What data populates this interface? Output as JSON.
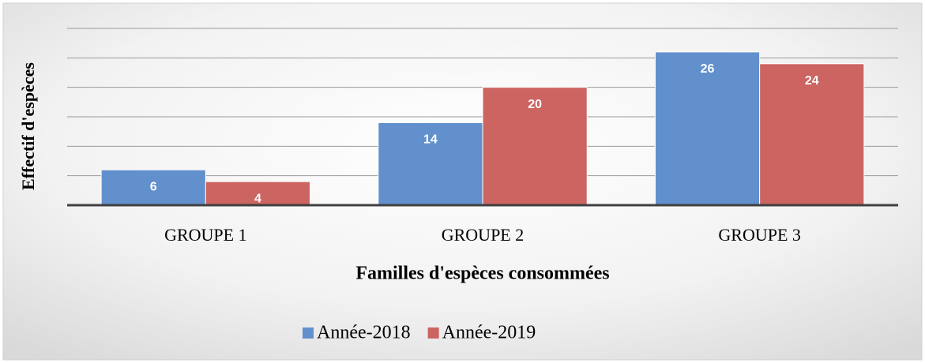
{
  "chart_data": {
    "type": "bar",
    "x_label": "Familles d'espèces consommées",
    "y_label": "Effectif d'espèces",
    "categories": [
      "GROUPE 1",
      "GROUPE 2",
      "GROUPE 3"
    ],
    "series": [
      {
        "name": "Année-2018",
        "color": "#6190cc",
        "values": [
          6,
          14,
          26
        ]
      },
      {
        "name": "Année-2019",
        "color": "#cc6462",
        "values": [
          4,
          20,
          24
        ]
      }
    ],
    "ylim": [
      0,
      30
    ],
    "yticks": [
      0,
      5,
      10,
      15,
      20,
      25,
      30
    ],
    "grid": true,
    "legend": "bottom"
  }
}
